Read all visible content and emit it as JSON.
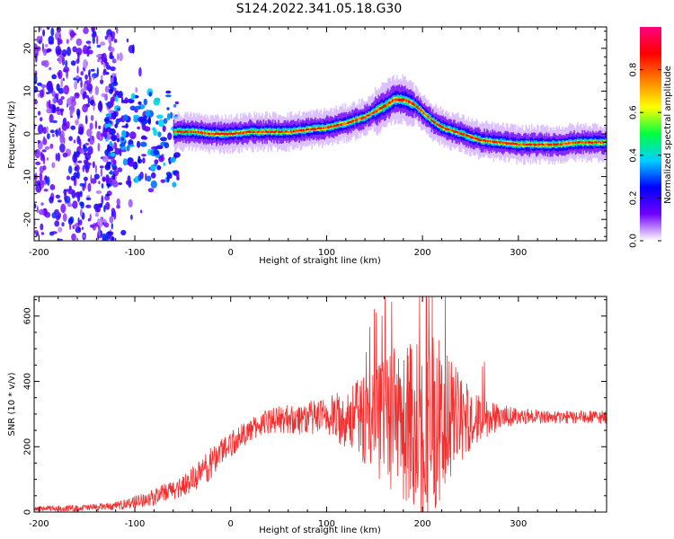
{
  "title": "S124.2022.341.05.18.G30",
  "chart_data": [
    {
      "type": "heatmap",
      "name": "spectrogram",
      "xlabel": "Height of straight line (km)",
      "ylabel": "Frequency (Hz)",
      "xlim": [
        -205,
        392
      ],
      "ylim": [
        -25,
        25
      ],
      "xticks": [
        -200,
        -100,
        0,
        100,
        200,
        300
      ],
      "yticks": [
        -20,
        -10,
        0,
        10,
        20
      ],
      "ridge": {
        "x": [
          -60,
          -40,
          -20,
          0,
          20,
          40,
          60,
          80,
          100,
          120,
          140,
          160,
          170,
          180,
          190,
          200,
          210,
          220,
          240,
          260,
          280,
          300,
          320,
          340,
          360,
          380,
          392
        ],
        "freq": [
          0.5,
          0.5,
          0,
          0,
          0.5,
          0.5,
          0.5,
          1,
          1.5,
          2.5,
          4,
          6.5,
          8,
          8,
          7,
          5,
          3,
          1.5,
          0,
          -1.5,
          -2,
          -2.5,
          -2.5,
          -2.5,
          -2,
          -2,
          -2
        ]
      },
      "colorbar": {
        "label": "Normalized spectral amplitude",
        "ticks": [
          0.0,
          0.2,
          0.4,
          0.6,
          0.8
        ],
        "colors": [
          "#ffffff",
          "#7000ff",
          "#0000ff",
          "#00d0ff",
          "#00ff40",
          "#ffff00",
          "#ff8000",
          "#ff0000",
          "#ff0080"
        ]
      }
    },
    {
      "type": "line",
      "name": "snr",
      "xlabel": "Height of straight line (km)",
      "ylabel": "SNR (10 * v/v)",
      "xlim": [
        -205,
        392
      ],
      "ylim": [
        0,
        660
      ],
      "xticks": [
        -200,
        -100,
        0,
        100,
        200,
        300
      ],
      "yticks": [
        0,
        200,
        400,
        600
      ],
      "color": "#f03030",
      "envelope": {
        "x": [
          -205,
          -160,
          -120,
          -80,
          -50,
          -30,
          -20,
          -10,
          0,
          20,
          40,
          60,
          100,
          130,
          150,
          170,
          190,
          200,
          220,
          240,
          260,
          280,
          300,
          340,
          392
        ],
        "base": [
          10,
          12,
          18,
          45,
          80,
          120,
          150,
          190,
          210,
          250,
          280,
          285,
          290,
          290,
          280,
          270,
          265,
          270,
          275,
          280,
          285,
          290,
          295,
          290,
          290
        ],
        "amp": [
          8,
          10,
          12,
          25,
          35,
          45,
          50,
          45,
          40,
          35,
          40,
          45,
          60,
          110,
          170,
          230,
          280,
          300,
          250,
          140,
          70,
          40,
          25,
          20,
          20
        ]
      }
    }
  ]
}
